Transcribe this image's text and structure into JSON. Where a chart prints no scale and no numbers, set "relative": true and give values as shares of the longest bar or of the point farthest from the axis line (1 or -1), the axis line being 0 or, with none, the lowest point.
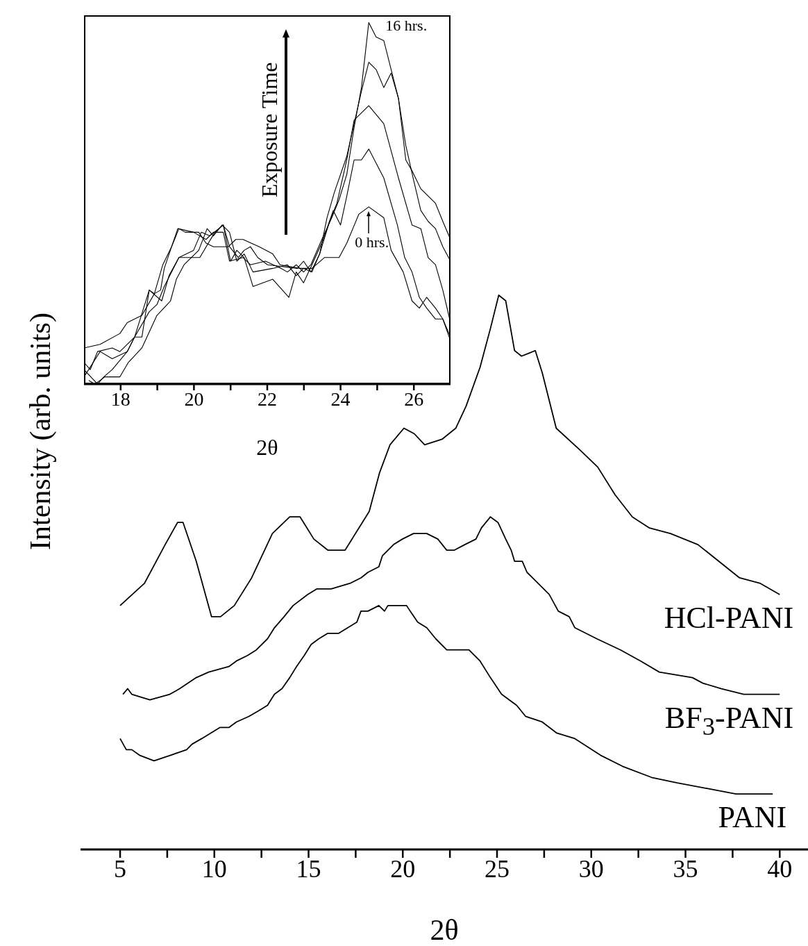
{
  "chart_data": [
    {
      "type": "line",
      "relative": true,
      "xlabel": "2θ",
      "ylabel": "Intensity (arb. units)",
      "marker": "none",
      "xlim": [
        2.9,
        41.5
      ],
      "xticks": [
        5,
        {
          "value": 7.5,
          "label": null
        },
        10,
        {
          "value": 12.5,
          "label": null
        },
        15,
        {
          "value": 17.5,
          "label": null
        },
        20,
        {
          "value": 22.5,
          "label": null
        },
        25,
        {
          "value": 27.5,
          "label": null
        },
        30,
        {
          "value": 32.5,
          "label": null
        },
        35,
        {
          "value": 37.5,
          "label": null
        },
        40
      ],
      "series": [
        {
          "name": "HCl-PANI",
          "color": "#000000",
          "x": [
            5.0,
            6.29,
            7.39,
            8.05,
            8.34,
            9.04,
            9.85,
            10.33,
            11.06,
            11.98,
            13.08,
            14.0,
            14.55,
            15.28,
            16.02,
            16.94,
            17.67,
            18.22,
            18.77,
            19.32,
            20.06,
            20.61,
            21.16,
            22.08,
            22.81,
            23.36,
            24.1,
            24.65,
            25.09,
            25.46,
            25.93,
            26.3,
            27.03,
            27.4,
            28.14,
            29.42,
            30.34,
            31.26,
            32.18,
            33.09,
            34.2,
            35.66,
            37.87,
            38.97,
            40.0
          ],
          "values": [
            0.44,
            0.48,
            0.55,
            0.59,
            0.59,
            0.52,
            0.42,
            0.42,
            0.44,
            0.49,
            0.57,
            0.6,
            0.6,
            0.56,
            0.54,
            0.54,
            0.58,
            0.61,
            0.68,
            0.73,
            0.76,
            0.75,
            0.73,
            0.74,
            0.76,
            0.8,
            0.87,
            0.94,
            1.0,
            0.99,
            0.9,
            0.89,
            0.9,
            0.86,
            0.76,
            0.72,
            0.69,
            0.64,
            0.6,
            0.58,
            0.57,
            0.55,
            0.49,
            0.48,
            0.46
          ]
        },
        {
          "name": "BF$_{3}$-PANI",
          "color": "#000000",
          "x": [
            5.15,
            5.4,
            5.62,
            6.58,
            7.64,
            8.16,
            9.04,
            9.7,
            10.77,
            11.17,
            11.76,
            12.23,
            12.82,
            13.19,
            13.7,
            14.18,
            14.95,
            15.43,
            16.2,
            17.19,
            17.78,
            18.15,
            18.73,
            18.92,
            19.51,
            19.98,
            20.57,
            21.27,
            21.86,
            22.33,
            22.74,
            23.29,
            23.88,
            24.17,
            24.65,
            25.05,
            25.46,
            25.75,
            25.93,
            26.34,
            26.59,
            27.18,
            27.77,
            28.25,
            28.83,
            29.13,
            30.3,
            31.55,
            32.62,
            33.61,
            35.37,
            35.92,
            36.91,
            38.09,
            39.23,
            40.0
          ],
          "values": [
            0.28,
            0.29,
            0.28,
            0.27,
            0.28,
            0.29,
            0.31,
            0.32,
            0.33,
            0.34,
            0.35,
            0.36,
            0.38,
            0.4,
            0.42,
            0.44,
            0.46,
            0.47,
            0.47,
            0.48,
            0.49,
            0.5,
            0.51,
            0.53,
            0.55,
            0.56,
            0.57,
            0.57,
            0.56,
            0.54,
            0.54,
            0.55,
            0.56,
            0.58,
            0.6,
            0.59,
            0.56,
            0.54,
            0.52,
            0.52,
            0.5,
            0.48,
            0.46,
            0.43,
            0.42,
            0.4,
            0.38,
            0.36,
            0.34,
            0.32,
            0.31,
            0.3,
            0.29,
            0.28,
            0.28,
            0.28
          ]
        },
        {
          "name": "PANI",
          "color": "#000000",
          "x": [
            5.0,
            5.33,
            5.62,
            6.03,
            6.8,
            7.68,
            8.53,
            8.82,
            9.33,
            9.81,
            10.29,
            10.77,
            11.17,
            11.83,
            12.34,
            12.82,
            13.19,
            13.59,
            14.0,
            14.36,
            14.77,
            15.14,
            15.54,
            16.02,
            16.6,
            17.08,
            17.56,
            17.78,
            18.15,
            18.73,
            19.03,
            19.21,
            19.73,
            20.2,
            20.39,
            20.79,
            21.27,
            21.75,
            22.33,
            22.92,
            23.51,
            24.1,
            24.65,
            25.24,
            26.04,
            26.52,
            27.4,
            28.17,
            29.13,
            30.49,
            31.66,
            33.2,
            34.56,
            36.14,
            37.68,
            38.86,
            39.63
          ],
          "values": [
            0.2,
            0.18,
            0.18,
            0.17,
            0.16,
            0.17,
            0.18,
            0.19,
            0.2,
            0.21,
            0.22,
            0.22,
            0.23,
            0.24,
            0.25,
            0.26,
            0.28,
            0.29,
            0.31,
            0.33,
            0.35,
            0.37,
            0.38,
            0.39,
            0.39,
            0.4,
            0.41,
            0.43,
            0.43,
            0.44,
            0.43,
            0.44,
            0.44,
            0.44,
            0.43,
            0.41,
            0.4,
            0.38,
            0.36,
            0.36,
            0.36,
            0.34,
            0.31,
            0.28,
            0.26,
            0.24,
            0.23,
            0.21,
            0.2,
            0.17,
            0.15,
            0.13,
            0.12,
            0.11,
            0.1,
            0.1,
            0.1
          ]
        }
      ]
    },
    {
      "type": "line",
      "relative": true,
      "xlabel": "2θ",
      "marker": "none",
      "xlim": [
        17,
        27
      ],
      "xticks": [
        18,
        {
          "value": 19,
          "label": null
        },
        20,
        {
          "value": 21,
          "label": null
        },
        22,
        {
          "value": 23,
          "label": null
        },
        24,
        {
          "value": 25,
          "label": null
        },
        26
      ],
      "annotations": [
        {
          "text": "16 hrs.",
          "x": 24.77,
          "y": 1.0
        },
        {
          "text": "0 hrs.",
          "x": 24.77,
          "y": 0.49
        },
        "Exposure Time"
      ],
      "series": [
        {
          "color": "#000000",
          "x": [
            17.0,
            17.44,
            17.98,
            18.18,
            18.58,
            18.92,
            19.09,
            19.19,
            19.39,
            19.59,
            19.76,
            20.13,
            20.33,
            20.53,
            20.94,
            21.14,
            21.34,
            21.78,
            22.15,
            22.35,
            22.89,
            23.22,
            23.56,
            23.96,
            24.17,
            24.5,
            24.77,
            25.18,
            25.38,
            25.71,
            25.95,
            26.15,
            26.35,
            26.59,
            26.79,
            27.0
          ],
          "values": [
            0.1,
            0.11,
            0.14,
            0.17,
            0.19,
            0.25,
            0.26,
            0.32,
            0.38,
            0.43,
            0.42,
            0.42,
            0.39,
            0.38,
            0.38,
            0.4,
            0.4,
            0.38,
            0.36,
            0.33,
            0.32,
            0.32,
            0.35,
            0.35,
            0.39,
            0.47,
            0.49,
            0.46,
            0.37,
            0.31,
            0.23,
            0.21,
            0.24,
            0.21,
            0.18,
            0.13
          ]
        },
        {
          "color": "#000000",
          "x": [
            17.0,
            17.17,
            17.37,
            17.77,
            17.98,
            18.38,
            18.58,
            18.78,
            19.12,
            19.32,
            19.59,
            20.16,
            20.57,
            20.8,
            21.0,
            21.17,
            21.37,
            21.61,
            22.15,
            22.59,
            22.79,
            22.99,
            23.22,
            23.53,
            23.8,
            24.0,
            24.17,
            24.37,
            24.57,
            24.77,
            25.18,
            25.55,
            25.75,
            25.95,
            26.15,
            26.35,
            26.59,
            26.79,
            27.0
          ],
          "values": [
            0.06,
            0.04,
            0.09,
            0.1,
            0.09,
            0.13,
            0.13,
            0.26,
            0.23,
            0.3,
            0.35,
            0.35,
            0.42,
            0.44,
            0.34,
            0.37,
            0.35,
            0.27,
            0.29,
            0.24,
            0.31,
            0.28,
            0.33,
            0.4,
            0.48,
            0.44,
            0.52,
            0.62,
            0.62,
            0.65,
            0.57,
            0.44,
            0.35,
            0.31,
            0.24,
            0.21,
            0.18,
            0.18,
            0.12
          ]
        },
        {
          "color": "#000000",
          "x": [
            17.0,
            17.37,
            17.54,
            17.77,
            18.18,
            18.38,
            18.78,
            18.99,
            19.19,
            19.59,
            19.99,
            20.2,
            20.43,
            20.8,
            20.97,
            21.21,
            21.37,
            21.54,
            21.74,
            22.01,
            22.82,
            22.99,
            23.19,
            23.43,
            23.7,
            23.9,
            24.17,
            24.37,
            24.77,
            25.18,
            25.58,
            25.95,
            26.19,
            26.39,
            26.59,
            26.79,
            27.0
          ],
          "values": [
            0.04,
            0.0,
            0.02,
            0.04,
            0.09,
            0.13,
            0.2,
            0.22,
            0.27,
            0.35,
            0.37,
            0.42,
            0.41,
            0.44,
            0.38,
            0.35,
            0.37,
            0.38,
            0.35,
            0.33,
            0.32,
            0.34,
            0.31,
            0.36,
            0.45,
            0.5,
            0.62,
            0.73,
            0.77,
            0.72,
            0.57,
            0.44,
            0.43,
            0.35,
            0.33,
            0.26,
            0.17
          ]
        },
        {
          "color": "#000000",
          "x": [
            17.13,
            17.3,
            17.57,
            17.98,
            18.21,
            18.58,
            18.99,
            19.36,
            19.52,
            19.73,
            20.13,
            20.36,
            20.53,
            20.77,
            20.97,
            21.17,
            21.37,
            21.61,
            22.15,
            22.55,
            22.79,
            22.99,
            23.22,
            23.43,
            23.63,
            23.83,
            24.17,
            24.37,
            24.57,
            24.77,
            24.97,
            25.18,
            25.38,
            25.58,
            25.78,
            25.95,
            26.19,
            26.59,
            26.79,
            27.0
          ],
          "values": [
            0.01,
            0.0,
            0.02,
            0.02,
            0.06,
            0.1,
            0.19,
            0.23,
            0.29,
            0.33,
            0.37,
            0.43,
            0.41,
            0.44,
            0.42,
            0.34,
            0.36,
            0.31,
            0.32,
            0.33,
            0.3,
            0.32,
            0.31,
            0.36,
            0.46,
            0.53,
            0.63,
            0.72,
            0.81,
            0.89,
            0.87,
            0.82,
            0.86,
            0.79,
            0.62,
            0.59,
            0.54,
            0.5,
            0.45,
            0.4
          ]
        },
        {
          "color": "#000000",
          "x": [
            17.0,
            17.44,
            17.77,
            18.18,
            18.38,
            18.78,
            18.92,
            19.15,
            19.39,
            19.56,
            19.99,
            20.33,
            20.53,
            20.8,
            20.97,
            21.34,
            21.54,
            21.95,
            22.38,
            22.55,
            22.79,
            22.99,
            23.19,
            23.49,
            23.76,
            23.96,
            24.17,
            24.37,
            24.57,
            24.77,
            24.97,
            25.18,
            25.38,
            25.58,
            25.78,
            25.98,
            26.19,
            26.39,
            26.59,
            26.79,
            27.0
          ],
          "values": [
            0.02,
            0.09,
            0.07,
            0.09,
            0.13,
            0.26,
            0.25,
            0.33,
            0.38,
            0.43,
            0.42,
            0.4,
            0.42,
            0.42,
            0.34,
            0.35,
            0.33,
            0.34,
            0.32,
            0.31,
            0.33,
            0.31,
            0.33,
            0.4,
            0.46,
            0.51,
            0.58,
            0.71,
            0.82,
            1.0,
            0.96,
            0.95,
            0.87,
            0.79,
            0.66,
            0.57,
            0.48,
            0.45,
            0.43,
            0.38,
            0.34
          ]
        }
      ]
    }
  ]
}
